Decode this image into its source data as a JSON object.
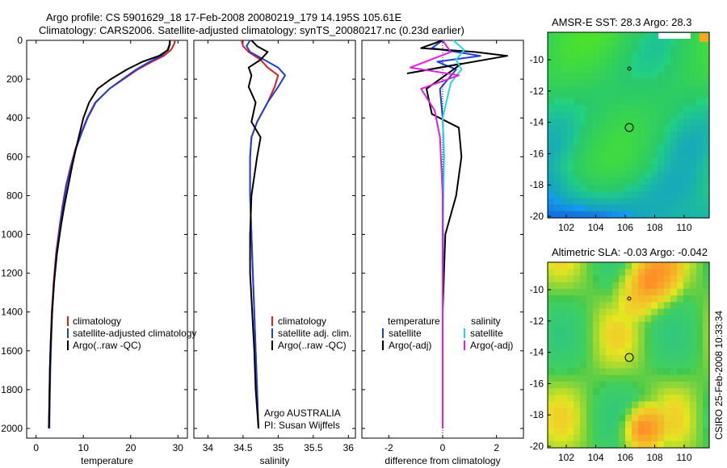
{
  "title": {
    "line1": "Argo profile: CS 5901629_18 17-Feb-2008 20080219_179 14.195S 105.61E",
    "line2": "Climatology: CARS2006. Satellite-adjusted climatology: synTS_20080217.nc (0.23d earlier)"
  },
  "credit": "CSIRO 25-Feb-2008 10:33:34",
  "colors": {
    "climatology": "#e41a1c",
    "satellite": "#1f3fdc",
    "argo": "#000000",
    "salinity_satellite": "#1fd9e6",
    "salinity_argo": "#e21ee0"
  },
  "chart_data": [
    {
      "type": "line",
      "panel": "temperature",
      "xlabel": "temperature",
      "ylabel": "",
      "xlim": [
        -2,
        32
      ],
      "ylim": [
        2050,
        0
      ],
      "xticks": [
        0,
        10,
        20,
        30
      ],
      "yticks": [
        0,
        200,
        400,
        600,
        800,
        1000,
        1200,
        1400,
        1600,
        1800,
        2000
      ],
      "legend": [
        "climatology",
        "satellite-adjusted climatology",
        "Argo(..raw -QC)"
      ],
      "legend_position": "bottom-center",
      "series": [
        {
          "name": "climatology",
          "color_key": "climatology",
          "x": [
            29.4,
            29.2,
            28.5,
            27.0,
            24.5,
            21.5,
            18.5,
            15.5,
            12.5,
            10.8,
            9.5,
            8.3,
            7.3,
            6.3,
            5.6,
            5.0,
            4.2,
            3.7,
            3.3,
            3.1,
            2.9,
            2.8,
            2.7
          ],
          "y": [
            0,
            20,
            50,
            80,
            110,
            150,
            200,
            250,
            320,
            400,
            480,
            560,
            650,
            750,
            850,
            950,
            1100,
            1250,
            1400,
            1550,
            1700,
            1850,
            2000
          ]
        },
        {
          "name": "satellite-adjusted climatology",
          "color_key": "satellite",
          "x": [
            28.3,
            28.2,
            27.8,
            26.5,
            24.0,
            21.2,
            18.3,
            15.5,
            12.6,
            10.9,
            9.6,
            8.4,
            7.4,
            6.4,
            5.7,
            5.1,
            4.3,
            3.8,
            3.4,
            3.2,
            3.0,
            2.9,
            2.8
          ],
          "y": [
            0,
            20,
            50,
            80,
            110,
            150,
            200,
            250,
            320,
            400,
            480,
            560,
            650,
            750,
            850,
            950,
            1100,
            1250,
            1400,
            1550,
            1700,
            1850,
            2000
          ]
        },
        {
          "name": "Argo(..raw -QC)",
          "color_key": "argo",
          "x": [
            28.3,
            28.3,
            27.9,
            26.0,
            22.5,
            19.2,
            15.8,
            13.0,
            11.2,
            10.0,
            9.2,
            8.4,
            7.6,
            6.8,
            6.0,
            5.3,
            4.4,
            3.8,
            3.4,
            3.1,
            2.9,
            2.8,
            2.7
          ],
          "y": [
            0,
            20,
            50,
            80,
            110,
            150,
            200,
            250,
            320,
            400,
            480,
            560,
            650,
            750,
            850,
            950,
            1100,
            1250,
            1400,
            1550,
            1700,
            1850,
            2000
          ]
        }
      ]
    },
    {
      "type": "line",
      "panel": "salinity",
      "xlabel": "salinity",
      "ylabel": "",
      "xlim": [
        33.8,
        36.1
      ],
      "ylim": [
        2050,
        0
      ],
      "xticks": [
        34,
        34.5,
        35,
        35.5,
        36
      ],
      "legend": [
        "climatology",
        "satellite adj. clim.",
        "Argo(..raw -QC)"
      ],
      "legend_position": "bottom-right",
      "annotation": [
        "Argo AUSTRALIA",
        "PI: Susan Wijffels"
      ],
      "series": [
        {
          "name": "climatology",
          "color_key": "climatology",
          "x": [
            34.48,
            34.5,
            34.58,
            34.75,
            34.85,
            35.0,
            34.95,
            34.85,
            34.7,
            34.62,
            34.6,
            34.6,
            34.62,
            34.64,
            34.66,
            34.68,
            34.7,
            34.71,
            34.72
          ],
          "y": [
            0,
            30,
            60,
            100,
            140,
            180,
            240,
            320,
            420,
            500,
            600,
            800,
            1000,
            1200,
            1400,
            1600,
            1800,
            1900,
            2000
          ]
        },
        {
          "name": "satellite adj. clim.",
          "color_key": "satellite",
          "x": [
            34.6,
            34.55,
            34.6,
            34.8,
            35.0,
            35.1,
            35.0,
            34.85,
            34.7,
            34.62,
            34.6,
            34.6,
            34.62,
            34.64,
            34.66,
            34.68,
            34.7,
            34.71,
            34.72
          ],
          "y": [
            0,
            30,
            60,
            100,
            140,
            180,
            240,
            320,
            420,
            500,
            600,
            800,
            1000,
            1200,
            1400,
            1600,
            1800,
            1900,
            2000
          ]
        },
        {
          "name": "Argo(..raw -QC)",
          "color_key": "argo",
          "x": [
            34.62,
            34.7,
            34.85,
            34.75,
            34.58,
            34.62,
            34.58,
            34.68,
            34.62,
            34.75,
            34.7,
            34.62,
            34.6,
            34.6,
            34.63,
            34.66,
            34.68,
            34.7,
            34.72
          ],
          "y": [
            0,
            30,
            60,
            100,
            140,
            180,
            240,
            320,
            420,
            500,
            600,
            800,
            1000,
            1200,
            1400,
            1600,
            1800,
            1900,
            2000
          ]
        }
      ]
    },
    {
      "type": "line",
      "panel": "difference",
      "xlabel": "difference from climatology",
      "ylabel": "",
      "xlim": [
        -3,
        3
      ],
      "ylim": [
        2050,
        0
      ],
      "xticks": [
        -2,
        0,
        2
      ],
      "legend_headers": [
        "temperature",
        "salinity"
      ],
      "legend": [
        "satellite",
        "Argo(-adj)",
        "satellite",
        "Argo(-adj)"
      ],
      "legend_position": "bottom",
      "series": [
        {
          "name": "satellite",
          "group": "temperature",
          "color_key": "satellite",
          "x": [
            0,
            -0.4,
            0.5,
            1.4,
            -0.2,
            0.5,
            -0.1,
            0.0,
            0.05,
            0.0,
            0.02,
            0.0,
            0.0,
            0.0
          ],
          "y": [
            0,
            40,
            60,
            80,
            110,
            150,
            250,
            400,
            600,
            800,
            1000,
            1400,
            1800,
            2000
          ]
        },
        {
          "name": "Argo(-adj)",
          "group": "temperature",
          "color_key": "argo",
          "x": [
            0,
            -0.8,
            1.2,
            2.4,
            -1.3,
            0.7,
            -0.6,
            -0.4,
            0.6,
            0.7,
            0.5,
            0.1,
            0.0,
            0.0,
            0.0
          ],
          "y": [
            0,
            40,
            60,
            80,
            170,
            120,
            250,
            380,
            450,
            600,
            800,
            1000,
            1400,
            1800,
            2000
          ]
        },
        {
          "name": "satellite",
          "group": "salinity",
          "color_key": "salinity_satellite",
          "x": [
            0.4,
            0.8,
            0.5,
            0.7,
            0.3,
            0.0,
            0.05,
            0.02,
            0.0,
            0.0,
            0.0
          ],
          "y": [
            0,
            50,
            100,
            150,
            220,
            400,
            600,
            900,
            1300,
            1700,
            2000
          ]
        },
        {
          "name": "Argo(-adj)",
          "group": "salinity",
          "color_key": "salinity_argo",
          "x": [
            0.0,
            0.3,
            -1.2,
            0.6,
            -0.8,
            -0.3,
            -0.1,
            0.0,
            0.0,
            0.0
          ],
          "y": [
            0,
            60,
            140,
            180,
            250,
            360,
            500,
            800,
            1400,
            2000
          ]
        }
      ]
    }
  ],
  "maps": [
    {
      "title": "AMSR-E SST: 28.3 Argo: 28.3",
      "xticks": [
        "102",
        "104",
        "106",
        "108",
        "110"
      ],
      "yticks": [
        "-10",
        "-12",
        "-14",
        "-16",
        "-18",
        "-20"
      ],
      "colormap": "sst"
    },
    {
      "title": "Altimetric SLA: -0.03 Argo: -0.042",
      "xticks": [
        "102",
        "104",
        "106",
        "108",
        "110"
      ],
      "yticks": [
        "-10",
        "-12",
        "-14",
        "-16",
        "-18",
        "-20"
      ],
      "colormap": "sla"
    }
  ]
}
